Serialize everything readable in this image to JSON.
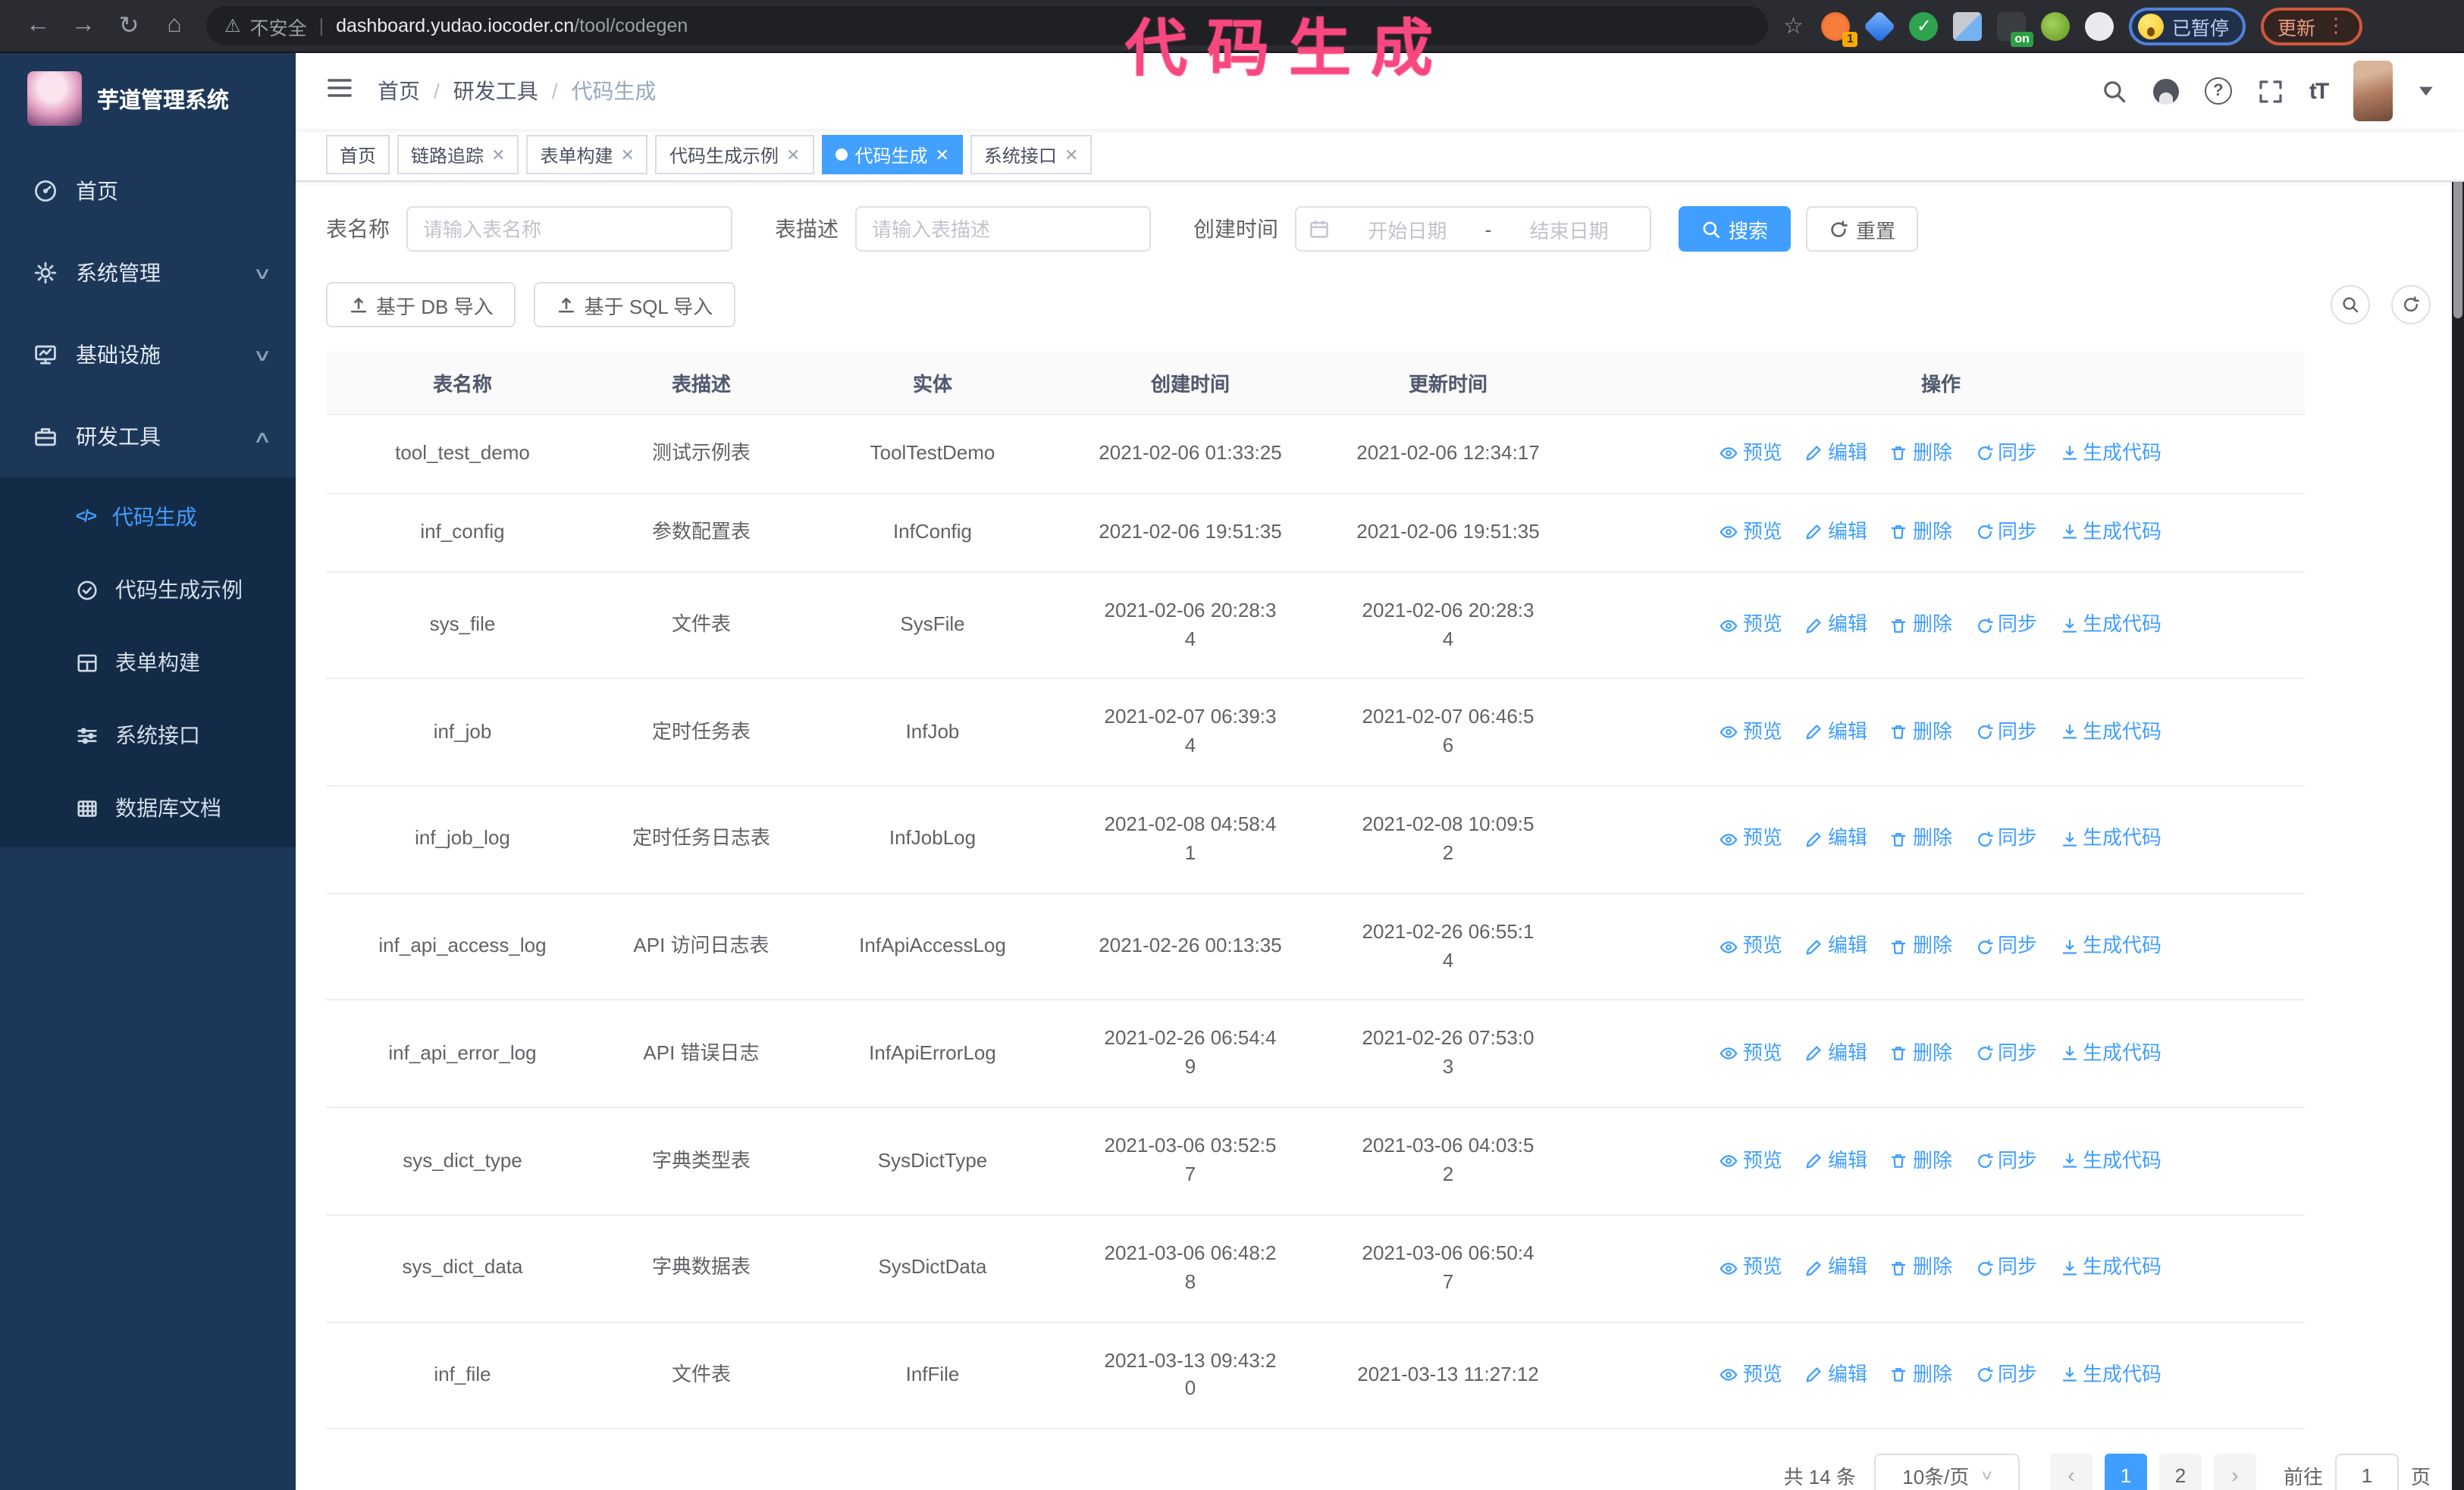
{
  "browser": {
    "security_label": "不安全",
    "url_domain": "dashboard.yudao.iocoder.cn",
    "url_path": "/tool/codegen",
    "ext_badge_count": "1",
    "ext_badge_on": "on",
    "paused_label": "已暂停",
    "update_label": "更新"
  },
  "annotation": {
    "text": "代码生成",
    "color": "#f9487f"
  },
  "sidebar": {
    "title": "芋道管理系统",
    "items": [
      {
        "label": "首页",
        "icon": "dashboard-icon"
      },
      {
        "label": "系统管理",
        "icon": "gear-icon",
        "chevron": "down"
      },
      {
        "label": "基础设施",
        "icon": "monitor-icon",
        "chevron": "down"
      },
      {
        "label": "研发工具",
        "icon": "toolbox-icon",
        "chevron": "up"
      }
    ],
    "submenu": [
      {
        "label": "代码生成",
        "icon": "code-icon",
        "active": true
      },
      {
        "label": "代码生成示例",
        "icon": "badge-check-icon"
      },
      {
        "label": "表单构建",
        "icon": "form-icon"
      },
      {
        "label": "系统接口",
        "icon": "sliders-icon"
      },
      {
        "label": "数据库文档",
        "icon": "database-icon"
      }
    ]
  },
  "breadcrumb": {
    "separator": "/",
    "items": [
      "首页",
      "研发工具",
      "代码生成"
    ]
  },
  "tags": [
    {
      "label": "首页",
      "closable": false,
      "active": false
    },
    {
      "label": "链路追踪",
      "closable": true,
      "active": false
    },
    {
      "label": "表单构建",
      "closable": true,
      "active": false
    },
    {
      "label": "代码生成示例",
      "closable": true,
      "active": false
    },
    {
      "label": "代码生成",
      "closable": true,
      "active": true
    },
    {
      "label": "系统接口",
      "closable": true,
      "active": false
    }
  ],
  "search_form": {
    "table_name_label": "表名称",
    "table_name_placeholder": "请输入表名称",
    "table_desc_label": "表描述",
    "table_desc_placeholder": "请输入表描述",
    "create_time_label": "创建时间",
    "start_date_placeholder": "开始日期",
    "range_separator": "-",
    "end_date_placeholder": "结束日期",
    "search_button": "搜索",
    "reset_button": "重置"
  },
  "toolbar": {
    "import_db_button": "基于 DB 导入",
    "import_sql_button": "基于 SQL 导入"
  },
  "table": {
    "columns": [
      "表名称",
      "表描述",
      "实体",
      "创建时间",
      "更新时间",
      "操作"
    ],
    "actions": [
      "预览",
      "编辑",
      "删除",
      "同步",
      "生成代码"
    ],
    "rows": [
      {
        "name": "tool_test_demo",
        "desc": "测试示例表",
        "entity": "ToolTestDemo",
        "created": "2021-02-06 01:33:25",
        "updated": "2021-02-06 12:34:17"
      },
      {
        "name": "inf_config",
        "desc": "参数配置表",
        "entity": "InfConfig",
        "created": "2021-02-06 19:51:35",
        "updated": "2021-02-06 19:51:35"
      },
      {
        "name": "sys_file",
        "desc": "文件表",
        "entity": "SysFile",
        "created": "2021-02-06 20:28:3\n4",
        "updated": "2021-02-06 20:28:3\n4"
      },
      {
        "name": "inf_job",
        "desc": "定时任务表",
        "entity": "InfJob",
        "created": "2021-02-07 06:39:3\n4",
        "updated": "2021-02-07 06:46:5\n6"
      },
      {
        "name": "inf_job_log",
        "desc": "定时任务日志表",
        "entity": "InfJobLog",
        "created": "2021-02-08 04:58:4\n1",
        "updated": "2021-02-08 10:09:5\n2"
      },
      {
        "name": "inf_api_access_log",
        "desc": "API 访问日志表",
        "entity": "InfApiAccessLog",
        "created": "2021-02-26 00:13:35",
        "updated": "2021-02-26 06:55:1\n4"
      },
      {
        "name": "inf_api_error_log",
        "desc": "API 错误日志",
        "entity": "InfApiErrorLog",
        "created": "2021-02-26 06:54:4\n9",
        "updated": "2021-02-26 07:53:0\n3"
      },
      {
        "name": "sys_dict_type",
        "desc": "字典类型表",
        "entity": "SysDictType",
        "created": "2021-03-06 03:52:5\n7",
        "updated": "2021-03-06 04:03:5\n2"
      },
      {
        "name": "sys_dict_data",
        "desc": "字典数据表",
        "entity": "SysDictData",
        "created": "2021-03-06 06:48:2\n8",
        "updated": "2021-03-06 06:50:4\n7"
      },
      {
        "name": "inf_file",
        "desc": "文件表",
        "entity": "InfFile",
        "created": "2021-03-13 09:43:2\n0",
        "updated": "2021-03-13 11:27:12"
      }
    ]
  },
  "pagination": {
    "total": "共 14 条",
    "page_size": "10条/页",
    "pages": [
      "1",
      "2"
    ],
    "active_page": "1",
    "goto_label": "前往",
    "goto_value": "1",
    "page_label": "页"
  }
}
